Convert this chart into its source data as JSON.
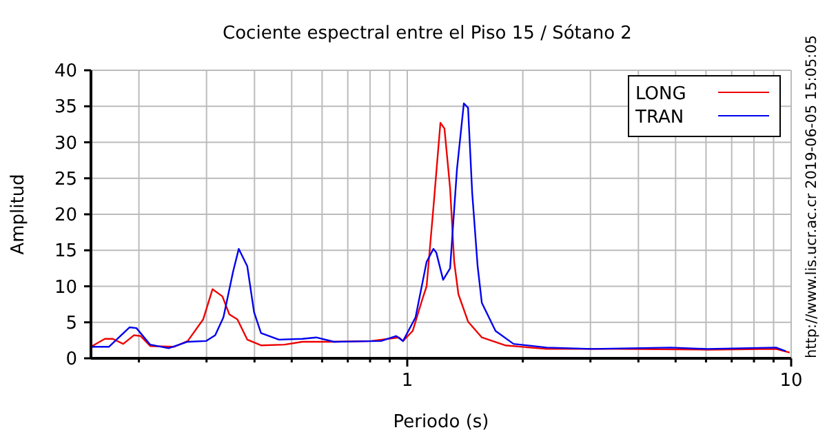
{
  "chart_data": {
    "type": "line",
    "title": "Cociente espectral entre el Piso 15 / Sótano 2",
    "xlabel": "Periodo (s)",
    "ylabel": "Amplitud",
    "log": "x",
    "grid": true,
    "legend": "top right",
    "xlim": [
      0.15,
      10
    ],
    "ylim": [
      0,
      40
    ],
    "xticks": [
      {
        "value": 0.2,
        "label": null
      },
      {
        "value": 0.3,
        "label": null
      },
      {
        "value": 0.4,
        "label": null
      },
      {
        "value": 0.5,
        "label": null
      },
      {
        "value": 0.6,
        "label": null
      },
      {
        "value": 0.7,
        "label": null
      },
      {
        "value": 0.8,
        "label": null
      },
      {
        "value": 0.9,
        "label": null
      },
      1,
      {
        "value": 2,
        "label": null
      },
      {
        "value": 3,
        "label": null
      },
      {
        "value": 4,
        "label": null
      },
      {
        "value": 5,
        "label": null
      },
      {
        "value": 6,
        "label": null
      },
      {
        "value": 7,
        "label": null
      },
      {
        "value": 8,
        "label": null
      },
      {
        "value": 9,
        "label": null
      },
      10
    ],
    "yticks": [
      0,
      5,
      10,
      15,
      20,
      25,
      30,
      35,
      40
    ],
    "annotations": [
      "http://www.lis.ucr.ac.cr  2019-06-05 15:05:05"
    ],
    "series": [
      {
        "name": "LONG",
        "color": "#ee0000",
        "x": [
          0.15,
          0.163,
          0.171,
          0.182,
          0.194,
          0.202,
          0.214,
          0.247,
          0.268,
          0.294,
          0.311,
          0.33,
          0.344,
          0.361,
          0.383,
          0.416,
          0.479,
          0.533,
          0.644,
          0.805,
          0.951,
          0.975,
          1.033,
          1.096,
          1.123,
          1.17,
          1.22,
          1.25,
          1.293,
          1.325,
          1.359,
          1.44,
          1.564,
          1.799,
          2.31,
          3.49,
          6.04,
          9.13,
          9.91
        ],
        "values": [
          1.6,
          2.7,
          2.7,
          2.0,
          3.2,
          3.1,
          1.7,
          1.6,
          2.4,
          5.4,
          9.6,
          8.6,
          6.1,
          5.4,
          2.6,
          1.8,
          1.9,
          2.3,
          2.3,
          2.4,
          2.9,
          2.4,
          3.8,
          8.3,
          10,
          21,
          32.7,
          31.9,
          23.6,
          13.4,
          8.9,
          5.1,
          2.9,
          1.8,
          1.3,
          1.3,
          1.2,
          1.3,
          0.8
        ]
      },
      {
        "name": "TRAN",
        "color": "#0000ee",
        "x": [
          0.15,
          0.167,
          0.189,
          0.197,
          0.214,
          0.239,
          0.268,
          0.299,
          0.316,
          0.332,
          0.352,
          0.364,
          0.383,
          0.399,
          0.416,
          0.463,
          0.533,
          0.579,
          0.644,
          0.855,
          0.936,
          0.975,
          1.051,
          1.123,
          1.17,
          1.19,
          1.24,
          1.293,
          1.347,
          1.404,
          1.44,
          1.476,
          1.525,
          1.564,
          1.698,
          1.892,
          2.31,
          3.03,
          4.86,
          6.04,
          9.13,
          9.68
        ],
        "values": [
          1.6,
          1.6,
          4.3,
          4.2,
          1.9,
          1.4,
          2.3,
          2.4,
          3.2,
          5.7,
          12.1,
          15.2,
          12.8,
          6.4,
          3.5,
          2.6,
          2.7,
          2.9,
          2.3,
          2.4,
          3.1,
          2.4,
          5.7,
          13.4,
          15.2,
          14.7,
          10.9,
          12.5,
          26.2,
          35.4,
          34.8,
          23,
          12.8,
          7.7,
          3.8,
          2.0,
          1.5,
          1.3,
          1.5,
          1.3,
          1.5,
          1.0
        ]
      }
    ]
  }
}
